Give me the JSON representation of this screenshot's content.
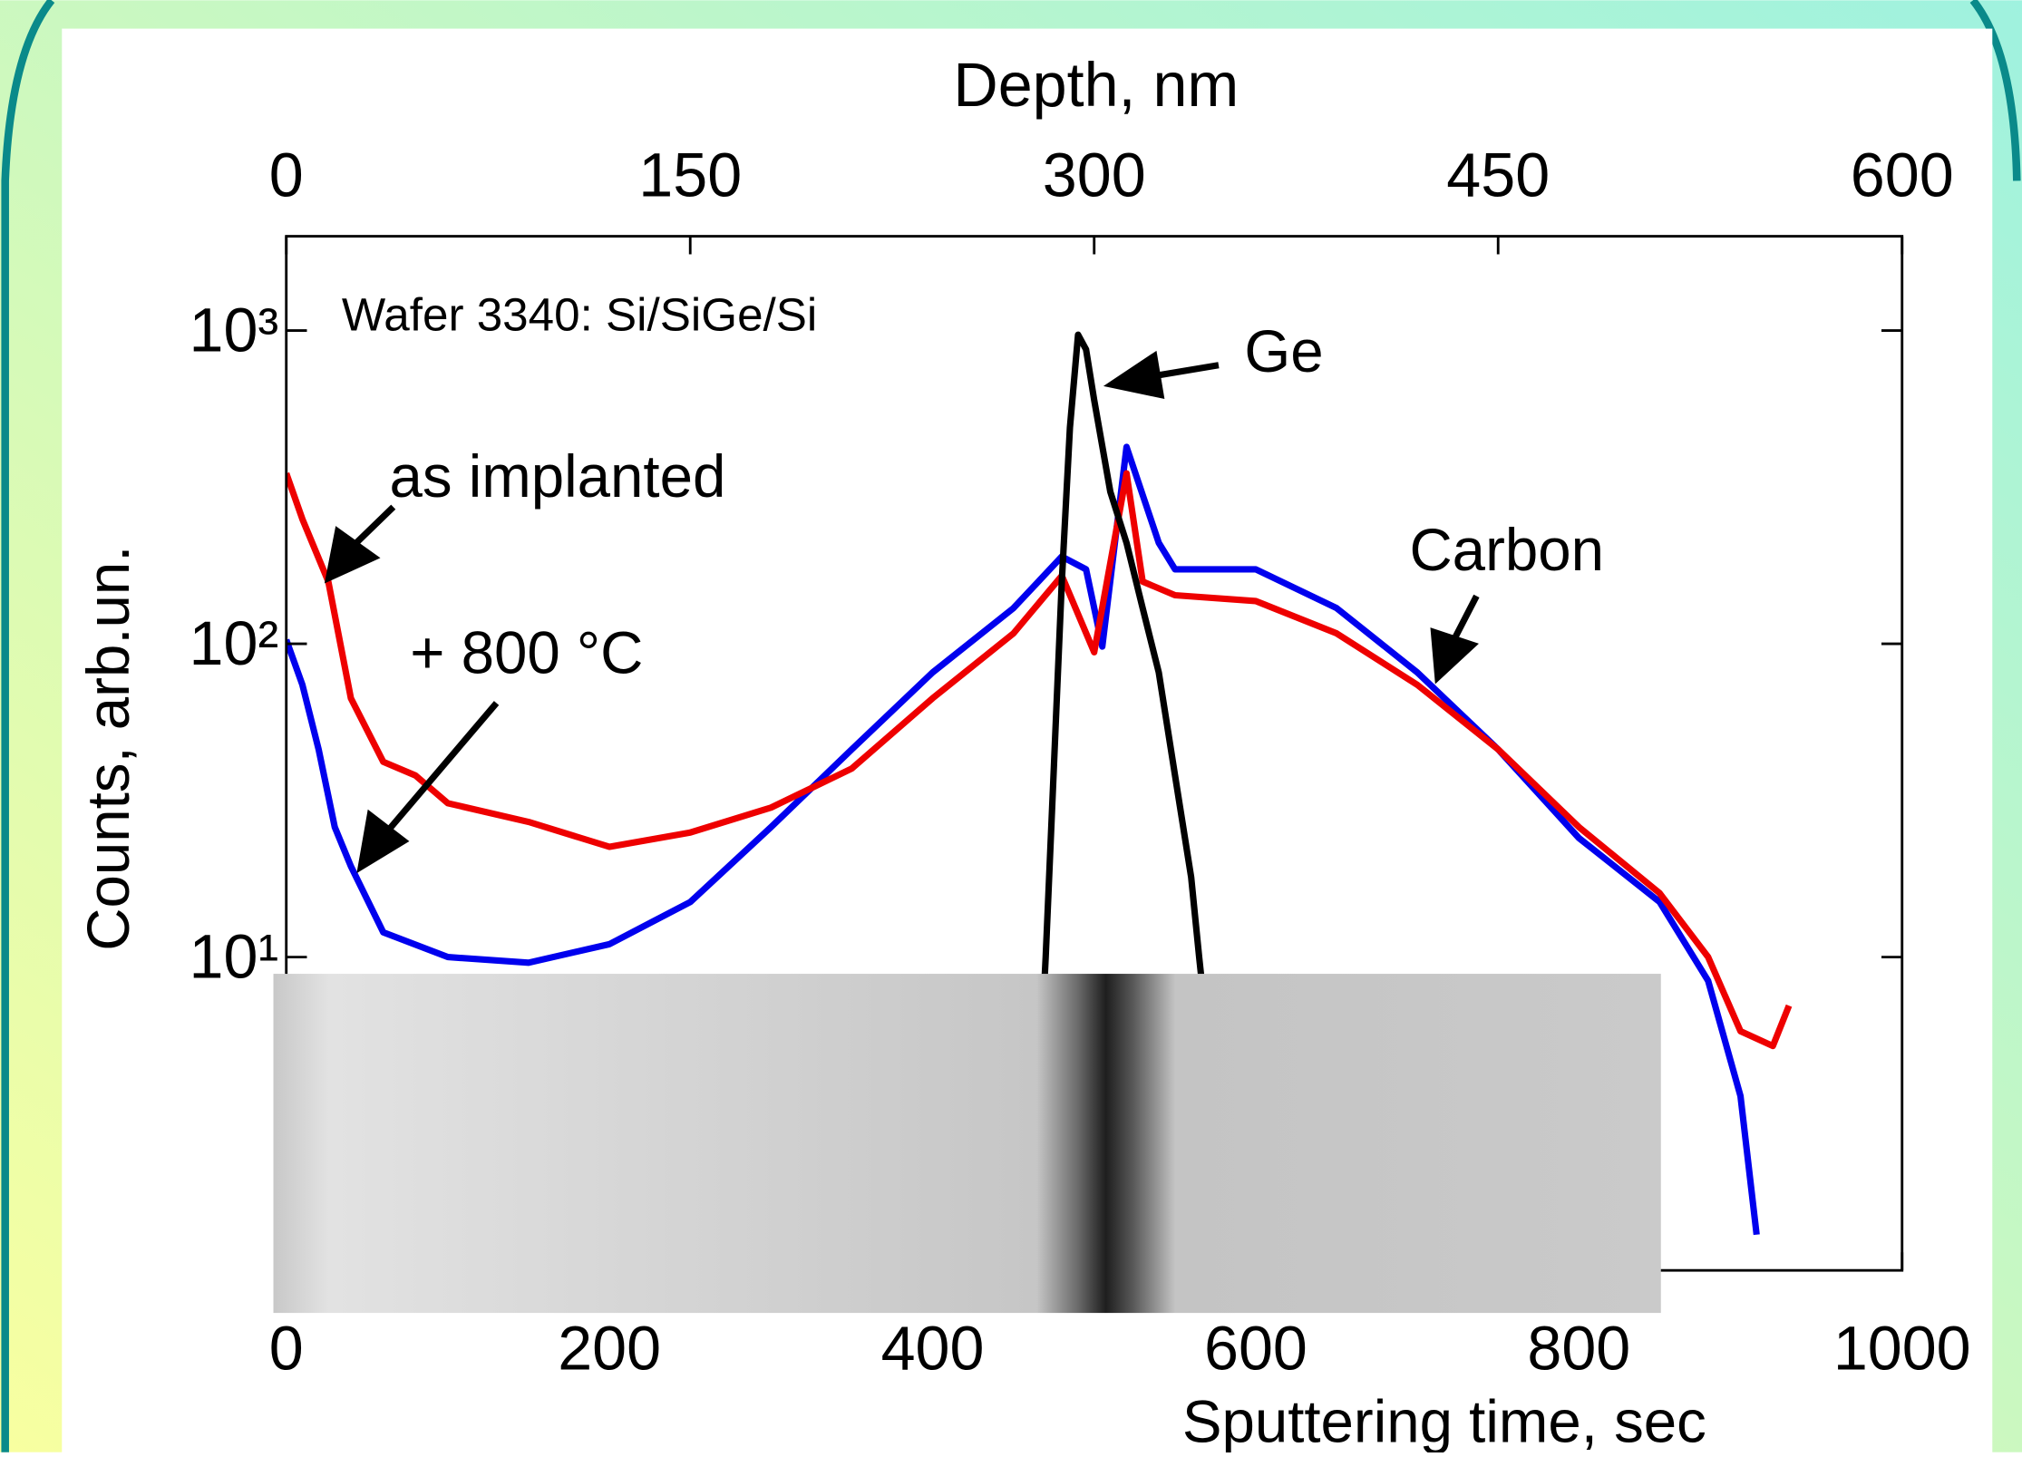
{
  "chart_data": {
    "type": "line",
    "log_y": true,
    "xlabel": "Sputtering time, sec",
    "x2label": "Depth, nm",
    "ylabel": "Counts, arb.un.",
    "xlim": [
      0,
      1000
    ],
    "xticks": [
      0,
      200,
      400,
      600,
      800,
      1000
    ],
    "x2lim": [
      0,
      600
    ],
    "x2ticks": [
      0,
      150,
      300,
      450,
      600
    ],
    "ylim": [
      1,
      2000
    ],
    "yticks": [
      {
        "value": 10,
        "label": "10¹"
      },
      {
        "value": 100,
        "label": "10²"
      },
      {
        "value": 1000,
        "label": "10³"
      }
    ],
    "annotations": [
      "Wafer 3340: Si/SiGe/Si",
      "Carbon"
    ],
    "series": [
      {
        "name": "Ge",
        "color": "#000000",
        "x": [
          465,
          470,
          475,
          480,
          485,
          490,
          495,
          500,
          510,
          520,
          530,
          540,
          550,
          560,
          565,
          570
        ],
        "values": [
          3,
          10,
          40,
          158,
          490,
          970,
          870,
          600,
          306,
          210,
          130,
          81,
          38,
          18,
          10,
          5.7
        ]
      },
      {
        "name": "as implanted",
        "color": "#ee0000",
        "x": [
          0,
          10,
          26,
          40,
          60,
          80,
          100,
          150,
          200,
          250,
          300,
          350,
          400,
          450,
          480,
          500,
          520,
          530,
          550,
          600,
          650,
          700,
          750,
          800,
          850,
          880,
          900,
          920,
          930
        ],
        "values": [
          350,
          250,
          158,
          67,
          42,
          38,
          31,
          27,
          22.5,
          25,
          30,
          40,
          67,
          108,
          165,
          94,
          350,
          158,
          143,
          137,
          108,
          74,
          46,
          26,
          16,
          10,
          5.8,
          5.2,
          7
        ]
      },
      {
        "name": "+ 800 °C",
        "color": "#0000ee",
        "x": [
          0,
          10,
          20,
          30,
          40,
          60,
          100,
          150,
          200,
          250,
          300,
          350,
          400,
          450,
          480,
          495,
          505,
          520,
          540,
          550,
          600,
          650,
          700,
          750,
          800,
          850,
          880,
          900,
          910
        ],
        "values": [
          103,
          74,
          46,
          26,
          19.5,
          12,
          10,
          9.6,
          11,
          15,
          26,
          46,
          81,
          130,
          190,
          173,
          98,
          425,
          210,
          173,
          173,
          130,
          81,
          46,
          24,
          15,
          8.4,
          3.6,
          1.3
        ]
      }
    ]
  }
}
